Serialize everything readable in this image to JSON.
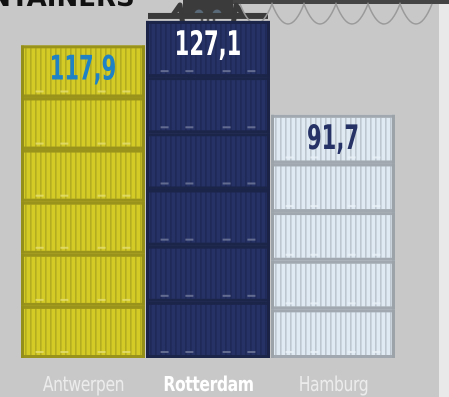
{
  "chart_data": {
    "type": "bar",
    "title": "CONTAINERS",
    "categories": [
      "Antwerpen",
      "Rotterdam",
      "Hamburg"
    ],
    "values": [
      117.9,
      127.1,
      91.7
    ],
    "value_labels": [
      "117,9",
      "127,1",
      "91,7"
    ],
    "highlighted": "Rotterdam",
    "ylim": [
      0,
      135
    ],
    "grid": false,
    "legend": "none",
    "colors": {
      "Antwerpen": "#d4cb26",
      "Rotterdam": "#263266",
      "Hamburg": "#dfeaf3",
      "label_Antwerpen": "#1f82c5",
      "label_Rotterdam": "#ffffff",
      "label_Hamburg": "#263266"
    }
  },
  "background": "#c8c8c8"
}
